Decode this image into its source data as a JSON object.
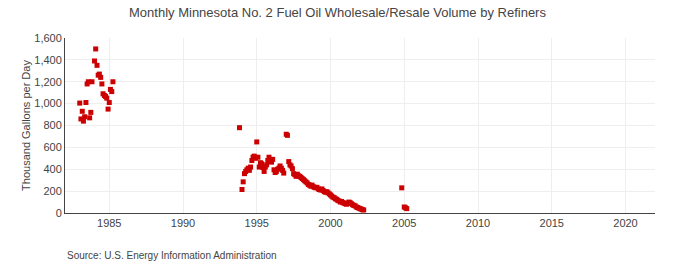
{
  "chart_data": {
    "type": "scatter",
    "title": "Monthly Minnesota No. 2 Fuel Oil Wholesale/Resale Volume by Refiners",
    "ylabel": "Thousand Gallons per Day",
    "annotations": [
      "Source: U.S. Energy Information Administration"
    ],
    "color": "#cc0000",
    "marker": "square",
    "grid": true,
    "xlim": [
      1982,
      2022
    ],
    "ylim": [
      0,
      1600
    ],
    "xticks": [
      1985,
      1990,
      1995,
      2000,
      2005,
      2010,
      2015,
      2020
    ],
    "yticks": [
      0,
      200,
      400,
      600,
      800,
      {
        "value": 1000,
        "label": "1,000"
      },
      {
        "value": 1200,
        "label": "1,200"
      },
      {
        "value": 1400,
        "label": "1,400"
      },
      {
        "value": 1600,
        "label": "1,600"
      }
    ],
    "x": [
      1983.0,
      1983.08,
      1983.17,
      1983.25,
      1983.33,
      1983.42,
      1983.5,
      1983.58,
      1983.67,
      1983.75,
      1983.83,
      1984.0,
      1984.08,
      1984.17,
      1984.25,
      1984.33,
      1984.42,
      1984.5,
      1984.58,
      1984.67,
      1984.75,
      1984.83,
      1984.92,
      1985.0,
      1985.08,
      1985.17,
      1985.25,
      1993.83,
      1994.0,
      1994.08,
      1994.17,
      1994.25,
      1994.33,
      1994.42,
      1994.5,
      1994.58,
      1994.67,
      1994.75,
      1994.83,
      1994.92,
      1995.0,
      1995.08,
      1995.17,
      1995.25,
      1995.33,
      1995.42,
      1995.5,
      1995.58,
      1995.67,
      1995.75,
      1995.83,
      1995.92,
      1996.0,
      1996.08,
      1996.17,
      1996.25,
      1996.33,
      1996.42,
      1996.5,
      1996.58,
      1996.67,
      1996.75,
      1996.83,
      1997.0,
      1997.08,
      1997.17,
      1997.25,
      1997.33,
      1997.42,
      1997.5,
      1997.58,
      1997.67,
      1997.75,
      1997.83,
      1997.92,
      1998.0,
      1998.08,
      1998.17,
      1998.25,
      1998.33,
      1998.42,
      1998.5,
      1998.58,
      1998.67,
      1998.75,
      1998.83,
      1998.92,
      1999.0,
      1999.08,
      1999.17,
      1999.25,
      1999.33,
      1999.42,
      1999.5,
      1999.58,
      1999.67,
      1999.75,
      1999.83,
      1999.92,
      2000.0,
      2000.08,
      2000.17,
      2000.25,
      2000.33,
      2000.42,
      2000.5,
      2000.58,
      2000.67,
      2000.75,
      2000.83,
      2000.92,
      2001.0,
      2001.08,
      2001.17,
      2001.25,
      2001.33,
      2001.42,
      2001.5,
      2001.58,
      2001.67,
      2001.75,
      2001.83,
      2001.92,
      2002.0,
      2002.08,
      2002.17,
      2002.25,
      2004.83,
      2005.0,
      2005.08,
      2005.17
    ],
    "values": [
      1005,
      860,
      930,
      840,
      880,
      1010,
      1180,
      1200,
      870,
      920,
      1200,
      1390,
      1500,
      1350,
      1260,
      1270,
      1240,
      1180,
      1090,
      1075,
      1065,
      1050,
      950,
      1010,
      1130,
      1110,
      1200,
      780,
      215,
      285,
      360,
      380,
      395,
      410,
      390,
      420,
      480,
      510,
      520,
      500,
      650,
      510,
      420,
      460,
      450,
      415,
      380,
      420,
      440,
      480,
      510,
      490,
      465,
      490,
      395,
      370,
      380,
      400,
      410,
      430,
      410,
      390,
      365,
      720,
      710,
      470,
      440,
      430,
      405,
      360,
      350,
      335,
      355,
      340,
      335,
      325,
      315,
      305,
      295,
      285,
      275,
      260,
      255,
      245,
      255,
      240,
      235,
      230,
      235,
      220,
      215,
      210,
      220,
      205,
      195,
      190,
      195,
      185,
      175,
      165,
      155,
      145,
      140,
      130,
      125,
      115,
      110,
      100,
      105,
      95,
      90,
      85,
      80,
      90,
      100,
      95,
      85,
      75,
      70,
      65,
      55,
      50,
      45,
      40,
      35,
      30,
      28,
      230,
      55,
      48,
      40
    ]
  }
}
